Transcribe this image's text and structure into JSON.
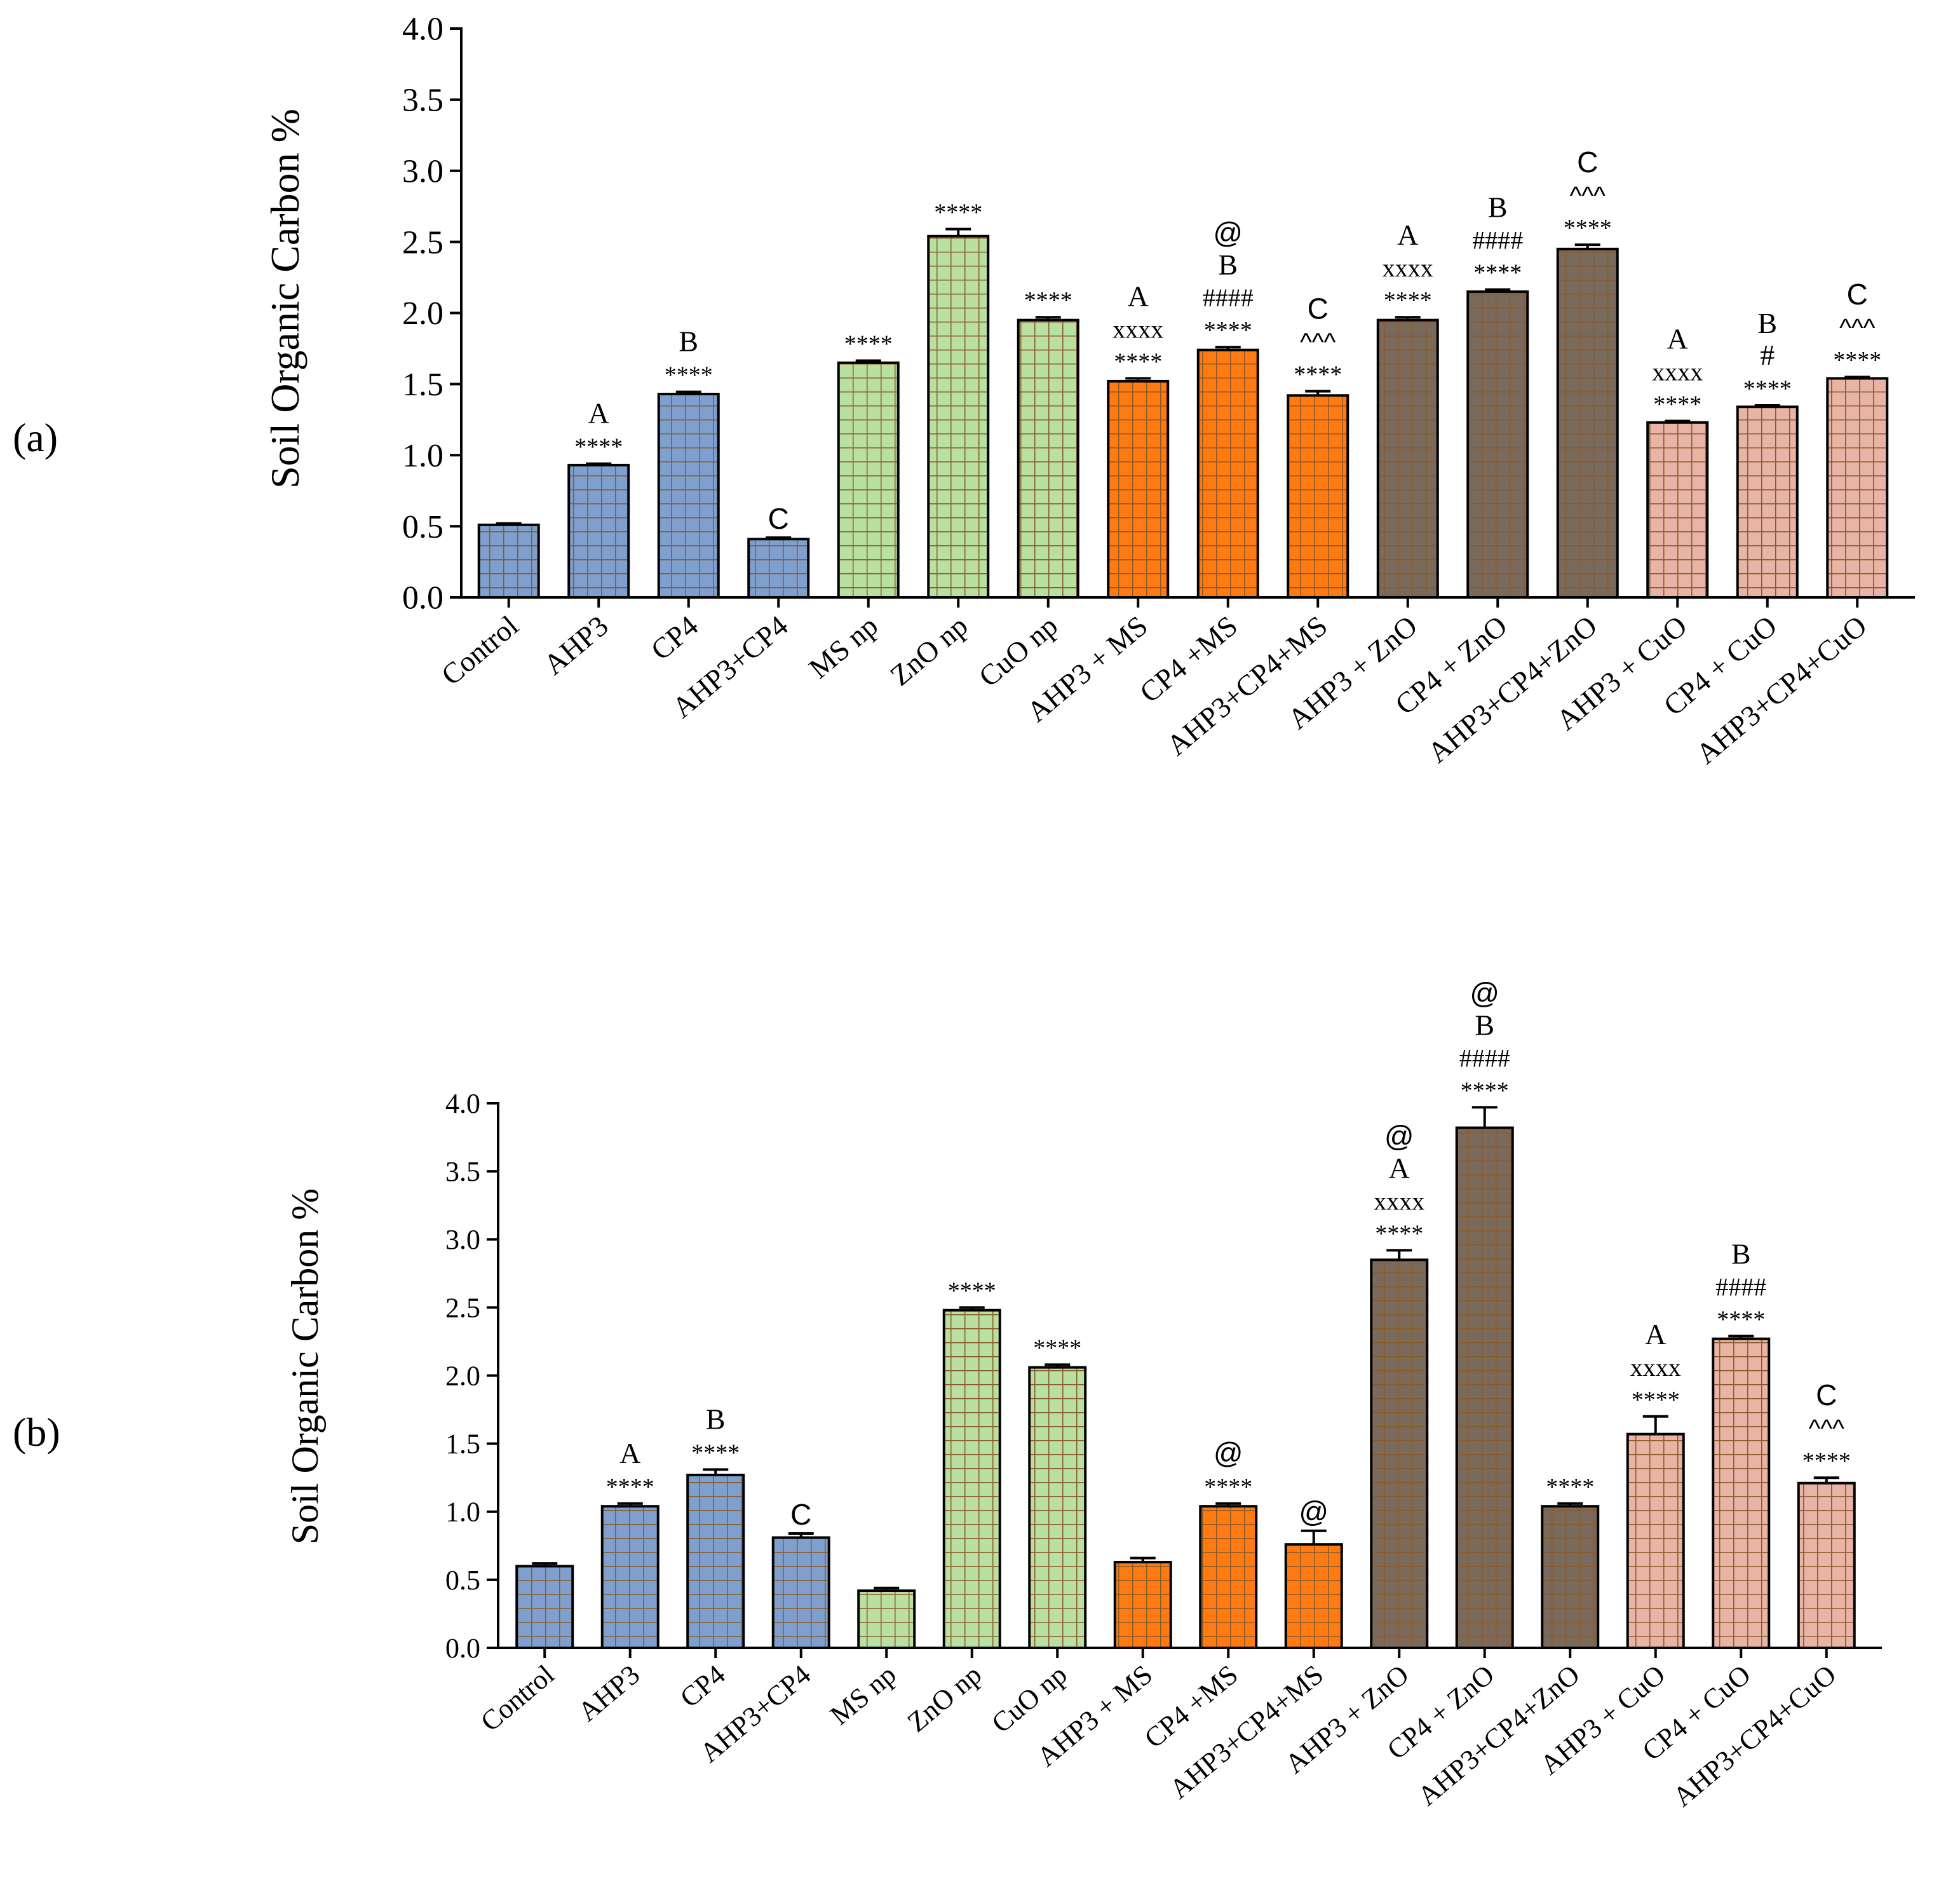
{
  "colors": {
    "blue": "#7f9fcf",
    "green": "#b8e0a0",
    "orange": "#ff7a10",
    "brown": "#7a6a5c",
    "pink": "#e8b4a6",
    "grid": "#8a5a2a",
    "axis": "#000000"
  },
  "chart_data": [
    {
      "type": "bar",
      "panel_label": "(a)",
      "ylabel": "Soil Organic Carbon %",
      "ylim": [
        0,
        4.0
      ],
      "yticks": [
        "0.0",
        "0.5",
        "1.0",
        "1.5",
        "2.0",
        "2.5",
        "3.0",
        "3.5",
        "4.0"
      ],
      "categories": [
        "Control",
        "AHP3",
        "CP4",
        "AHP3+CP4",
        "MS np",
        "ZnO np",
        "CuO np",
        "AHP3 + MS",
        "CP4 +MS",
        "AHP3+CP4+MS",
        "AHP3 + ZnO",
        "CP4 + ZnO",
        "AHP3+CP4+ZnO",
        "AHP3 + CuO",
        "CP4 + CuO",
        "AHP3+CP4+CuO"
      ],
      "values": [
        0.51,
        0.93,
        1.43,
        0.41,
        1.65,
        2.54,
        1.95,
        1.52,
        1.74,
        1.42,
        1.95,
        2.15,
        2.45,
        1.23,
        1.34,
        1.54
      ],
      "errors": [
        0.01,
        0.01,
        0.015,
        0.01,
        0.015,
        0.05,
        0.02,
        0.02,
        0.02,
        0.03,
        0.02,
        0.015,
        0.03,
        0.01,
        0.01,
        0.01
      ],
      "color_groups": [
        "blue",
        "blue",
        "blue",
        "blue",
        "green",
        "green",
        "green",
        "orange",
        "orange",
        "orange",
        "brown",
        "brown",
        "brown",
        "pink",
        "pink",
        "pink"
      ],
      "annotations": [
        [],
        [
          "****",
          "A"
        ],
        [
          "****",
          "B"
        ],
        [
          "C"
        ],
        [
          "****"
        ],
        [
          "****"
        ],
        [
          "****"
        ],
        [
          "****",
          "xxxx",
          "A"
        ],
        [
          "****",
          "####",
          "B",
          "@"
        ],
        [
          "****",
          "^^^",
          "C"
        ],
        [
          "****",
          "xxxx",
          "A"
        ],
        [
          "****",
          "####",
          "B"
        ],
        [
          "****",
          "^^^",
          "C"
        ],
        [
          "****",
          "xxxx",
          "A"
        ],
        [
          "****",
          "#",
          "B"
        ],
        [
          "****",
          "^^^",
          "C"
        ]
      ]
    },
    {
      "type": "bar",
      "panel_label": "(b)",
      "ylabel": "Soil Organic Carbon %",
      "ylim": [
        0,
        4.0
      ],
      "yticks": [
        "0.0",
        "0.5",
        "1.0",
        "1.5",
        "2.0",
        "2.5",
        "3.0",
        "3.5",
        "4.0"
      ],
      "categories": [
        "Control",
        "AHP3",
        "CP4",
        "AHP3+CP4",
        "MS np",
        "ZnO np",
        "CuO np",
        "AHP3 + MS",
        "CP4 +MS",
        "AHP3+CP4+MS",
        "AHP3 + ZnO",
        "CP4 + ZnO",
        "AHP3+CP4+ZnO",
        "AHP3 + CuO",
        "CP4 + CuO",
        "AHP3+CP4+CuO"
      ],
      "values": [
        0.6,
        1.04,
        1.27,
        0.81,
        0.42,
        2.48,
        2.06,
        0.63,
        1.04,
        0.76,
        2.85,
        3.82,
        1.04,
        1.57,
        2.27,
        1.21
      ],
      "errors": [
        0.02,
        0.02,
        0.04,
        0.03,
        0.02,
        0.02,
        0.02,
        0.03,
        0.02,
        0.1,
        0.07,
        0.15,
        0.02,
        0.13,
        0.02,
        0.04
      ],
      "color_groups": [
        "blue",
        "blue",
        "blue",
        "blue",
        "green",
        "green",
        "green",
        "orange",
        "orange",
        "orange",
        "brown",
        "brown",
        "brown",
        "pink",
        "pink",
        "pink"
      ],
      "annotations": [
        [],
        [
          "****",
          "A"
        ],
        [
          "****",
          "B"
        ],
        [
          "C"
        ],
        [],
        [
          "****"
        ],
        [
          "****"
        ],
        [],
        [
          "****",
          "@"
        ],
        [
          "@"
        ],
        [
          "****",
          "xxxx",
          "A",
          "@"
        ],
        [
          "****",
          "####",
          "B",
          "@"
        ],
        [
          "****"
        ],
        [
          "****",
          "xxxx",
          "A"
        ],
        [
          "****",
          "####",
          "B"
        ],
        [
          "****",
          "^^^",
          "C"
        ]
      ]
    }
  ]
}
